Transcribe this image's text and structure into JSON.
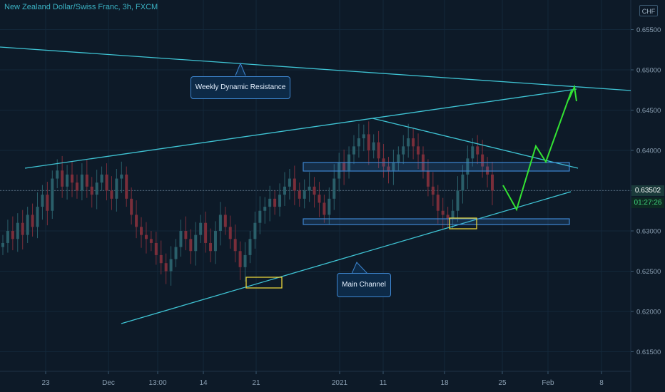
{
  "title": "New Zealand Dollar/Swiss Franc, 3h, FXCM",
  "currency_button": "CHF",
  "annotations": {
    "weekly_resistance": "Weekly Dynamic Resistance",
    "main_channel": "Main Channel"
  },
  "current_price": "0.63502",
  "countdown": "01:27:26",
  "colors": {
    "background": "#0d1a28",
    "up_candle": "#2a5f6a",
    "down_candle": "#7a2e3a",
    "trendline": "#3fc4d4",
    "zone": "#3e86d0",
    "highlight": "#e8d43a",
    "projection": "#33e333"
  },
  "chart_data": {
    "type": "candlestick",
    "y_axis": {
      "ticks": [
        "0.65500",
        "0.65000",
        "0.64500",
        "0.64000",
        "0.63500",
        "0.63000",
        "0.62500",
        "0.62000",
        "0.61500"
      ],
      "range": [
        0.6115,
        0.6573
      ]
    },
    "x_axis": {
      "ticks": [
        "23",
        "Dec",
        "13:00",
        "14",
        "21",
        "2021",
        "11",
        "18",
        "25",
        "Feb",
        "8"
      ]
    },
    "candle_closes": [
      0.6285,
      0.63,
      0.629,
      0.631,
      0.6295,
      0.632,
      0.6305,
      0.633,
      0.6345,
      0.6325,
      0.6365,
      0.6375,
      0.6355,
      0.637,
      0.636,
      0.635,
      0.637,
      0.6355,
      0.6345,
      0.636,
      0.637,
      0.635,
      0.634,
      0.6365,
      0.637,
      0.634,
      0.632,
      0.6305,
      0.6295,
      0.629,
      0.6285,
      0.627,
      0.626,
      0.625,
      0.6265,
      0.628,
      0.63,
      0.629,
      0.6275,
      0.6295,
      0.631,
      0.6285,
      0.6275,
      0.63,
      0.632,
      0.6305,
      0.629,
      0.6275,
      0.6255,
      0.627,
      0.629,
      0.631,
      0.6325,
      0.633,
      0.634,
      0.633,
      0.6345,
      0.6355,
      0.6365,
      0.635,
      0.634,
      0.635,
      0.6355,
      0.6345,
      0.6335,
      0.632,
      0.634,
      0.6365,
      0.6385,
      0.6375,
      0.6395,
      0.6405,
      0.6415,
      0.642,
      0.64,
      0.641,
      0.639,
      0.638,
      0.6375,
      0.6385,
      0.6395,
      0.6405,
      0.6415,
      0.6405,
      0.6395,
      0.6375,
      0.6355,
      0.6345,
      0.6325,
      0.632,
      0.6315,
      0.6325,
      0.635,
      0.637,
      0.639,
      0.6405,
      0.6395,
      0.638,
      0.637,
      0.635
    ],
    "current_price": 0.63502,
    "annotations": [
      "Weekly Dynamic Resistance",
      "Main Channel"
    ]
  }
}
